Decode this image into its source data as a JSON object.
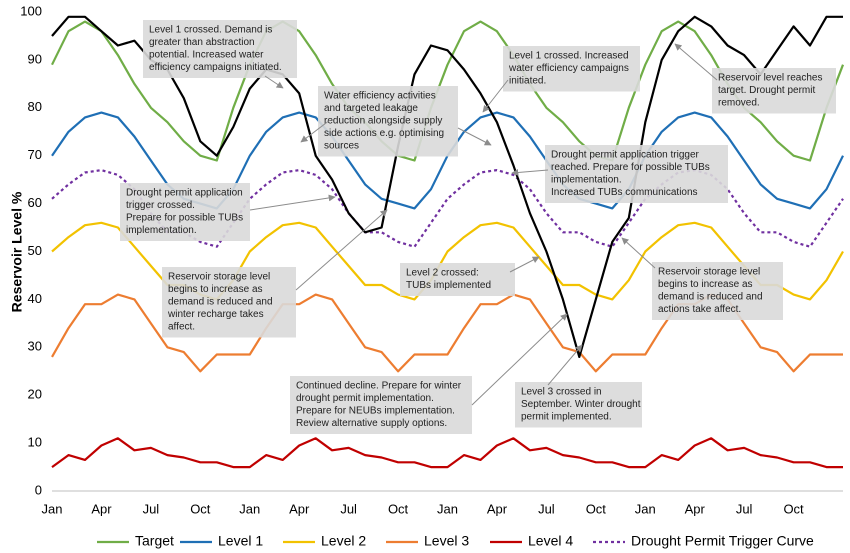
{
  "chart_data": {
    "type": "line",
    "y_label": "Reservoir Level %",
    "categories": [
      "Jan",
      null,
      null,
      "Apr",
      null,
      null,
      "Jul",
      null,
      null,
      "Oct",
      null,
      null,
      "Jan",
      null,
      null,
      "Apr",
      null,
      null,
      "Jul",
      null,
      null,
      "Oct",
      null,
      null,
      "Jan",
      null,
      null,
      "Apr",
      null,
      null,
      "Jul",
      null,
      null,
      "Oct",
      null,
      null,
      "Jan",
      null,
      null,
      "Apr",
      null,
      null,
      "Jul",
      null,
      null,
      "Oct",
      null,
      null,
      null
    ],
    "ylim": [
      0,
      100
    ],
    "yticks": [
      0,
      10,
      20,
      30,
      40,
      50,
      60,
      70,
      80,
      90,
      100
    ],
    "grid": false,
    "legend": "bottom",
    "series": [
      {
        "name": "Target",
        "color": "#70ad47",
        "values": [
          89,
          96,
          98,
          96,
          91,
          85,
          80,
          77,
          73,
          70,
          69,
          80,
          89,
          96,
          98,
          96,
          91,
          85,
          80,
          77,
          73,
          70,
          69,
          80,
          89,
          96,
          98,
          96,
          91,
          85,
          80,
          77,
          73,
          70,
          69,
          80,
          89,
          96,
          98,
          96,
          91,
          85,
          80,
          77,
          73,
          70,
          69,
          80,
          89
        ]
      },
      {
        "name": "Level 1",
        "color": "#1f6fb5",
        "values": [
          70,
          75,
          78,
          79,
          78,
          74,
          69,
          64,
          61,
          60,
          59,
          63,
          70,
          75,
          78,
          79,
          78,
          74,
          69,
          64,
          61,
          60,
          59,
          63,
          70,
          75,
          78,
          79,
          78,
          74,
          69,
          64,
          61,
          60,
          59,
          63,
          70,
          75,
          78,
          79,
          78,
          74,
          69,
          64,
          61,
          60,
          59,
          63,
          70
        ]
      },
      {
        "name": "Level 2",
        "color": "#f2c200",
        "values": [
          50,
          53,
          55.5,
          56,
          55,
          51,
          47,
          43,
          43,
          41,
          40,
          44,
          50,
          53,
          55.5,
          56,
          55,
          51,
          47,
          43,
          43,
          41,
          40,
          44,
          50,
          53,
          55.5,
          56,
          55,
          51,
          47,
          43,
          43,
          41,
          40,
          44,
          50,
          53,
          55.5,
          56,
          55,
          51,
          47,
          43,
          43,
          41,
          40,
          44,
          50
        ]
      },
      {
        "name": "Level 3",
        "color": "#ed7d31",
        "values": [
          28,
          34,
          39,
          39,
          41,
          40,
          35,
          30,
          29,
          25,
          28.5,
          28.5,
          28.5,
          34,
          39,
          39,
          41,
          40,
          35,
          30,
          29,
          25,
          28.5,
          28.5,
          28.5,
          34,
          39,
          39,
          41,
          40,
          35,
          30,
          29,
          25,
          28.5,
          28.5,
          28.5,
          34,
          39,
          39,
          41,
          40,
          35,
          30,
          29,
          25,
          28.5,
          28.5,
          28.5
        ]
      },
      {
        "name": "Level 4",
        "color": "#c00000",
        "values": [
          5,
          7.5,
          6.5,
          9.5,
          11,
          8.5,
          9,
          7.5,
          7,
          6,
          6,
          5,
          5,
          7.5,
          6.5,
          9.5,
          11,
          8.5,
          9,
          7.5,
          7,
          6,
          6,
          5,
          5,
          7.5,
          6.5,
          9.5,
          11,
          8.5,
          9,
          7.5,
          7,
          6,
          6,
          5,
          5,
          7.5,
          6.5,
          9.5,
          11,
          8.5,
          9,
          7.5,
          7,
          6,
          6,
          5,
          5
        ]
      },
      {
        "name": "Drought Permit Trigger Curve",
        "color": "#7030a0",
        "dash": true,
        "values": [
          61,
          64,
          66.5,
          67,
          66,
          63,
          58,
          54,
          54,
          52,
          51,
          56,
          61,
          64,
          66.5,
          67,
          66,
          63,
          58,
          54,
          54,
          52,
          51,
          56,
          61,
          64,
          66.5,
          67,
          66,
          63,
          58,
          54,
          54,
          52,
          51,
          56,
          61,
          64,
          66.5,
          67,
          66,
          63,
          58,
          54,
          54,
          52,
          51,
          56,
          61
        ]
      },
      {
        "color": "#000000",
        "values": [
          95,
          99,
          99,
          96,
          93,
          94,
          90,
          88,
          82,
          73,
          70,
          76,
          84,
          88,
          87,
          83,
          70,
          65,
          58,
          54,
          55,
          72,
          87,
          93,
          92,
          88,
          83,
          77,
          68,
          58,
          50,
          40,
          28,
          40,
          52,
          57,
          77,
          90,
          96,
          99,
          97,
          93,
          91,
          87,
          92,
          97,
          93,
          99,
          99
        ]
      }
    ],
    "annotations": [
      [
        "Level 1 crossed. Demand is",
        "greater than abstraction",
        "potential. Increased water",
        "efficiency campaigns initiated."
      ],
      [
        "Water efficiency activities",
        "and targeted leakage",
        "reduction alongside supply",
        "side actions e.g. optimising",
        "sources"
      ],
      [
        "Level 1 crossed. Increased",
        "water efficiency campaigns",
        "initiated."
      ],
      [
        "Reservoir level reaches",
        "target.  Drought permit",
        "removed."
      ],
      [
        "Drought permit application trigger",
        "reached.  Prepare for possible TUBs",
        "implementation.",
        "Increased TUBs communications"
      ],
      [
        "Drought permit application",
        "trigger crossed.",
        "Prepare for possible TUBs",
        "implementation."
      ],
      [
        "Reservoir storage level",
        "begins to increase as",
        "demand is reduced and",
        "winter recharge takes",
        "affect."
      ],
      [
        "Level 2 crossed:",
        "TUBs implemented"
      ],
      [
        "Reservoir storage level",
        "begins to increase as",
        "demand is reduced and",
        "actions take affect."
      ],
      [
        "Continued decline. Prepare for winter",
        "drought permit implementation.",
        "Prepare for NEUBs implementation.",
        "Review alternative supply options."
      ],
      [
        "Level 3 crossed in",
        "September.  Winter drought",
        "permit implemented."
      ]
    ]
  }
}
